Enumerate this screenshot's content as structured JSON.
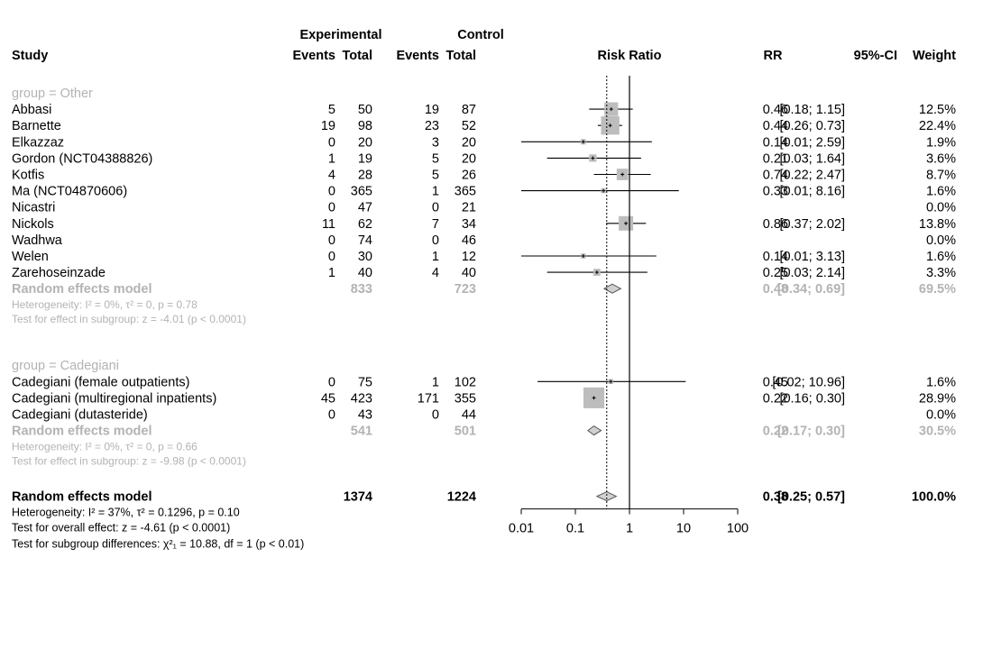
{
  "header": {
    "study": "Study",
    "experimental": "Experimental",
    "control": "Control",
    "events": "Events",
    "total": "Total",
    "risk_ratio": "Risk Ratio",
    "rr": "RR",
    "ci": "95%-CI",
    "weight": "Weight"
  },
  "chart_data": {
    "type": "forest",
    "xscale": "log",
    "xlim": [
      0.01,
      100
    ],
    "xticks": [
      "0.01",
      "0.1",
      "1",
      "10",
      "100"
    ],
    "reference_line": 1,
    "overall_line": 0.38,
    "groups": [
      {
        "label": "group = Other",
        "studies": [
          {
            "name": "Abbasi",
            "e_events": "5",
            "e_total": "50",
            "c_events": "19",
            "c_total": "87",
            "rr": "0.46",
            "ci": "[0.18; 1.15]",
            "weight": "12.5%",
            "rr_val": 0.46,
            "lo": 0.18,
            "hi": 1.15,
            "w": 12.5
          },
          {
            "name": "Barnette",
            "e_events": "19",
            "e_total": "98",
            "c_events": "23",
            "c_total": "52",
            "rr": "0.44",
            "ci": "[0.26; 0.73]",
            "weight": "22.4%",
            "rr_val": 0.44,
            "lo": 0.26,
            "hi": 0.73,
            "w": 22.4
          },
          {
            "name": "Elkazzaz",
            "e_events": "0",
            "e_total": "20",
            "c_events": "3",
            "c_total": "20",
            "rr": "0.14",
            "ci": "[0.01; 2.59]",
            "weight": "1.9%",
            "rr_val": 0.14,
            "lo": 0.01,
            "hi": 2.59,
            "w": 1.9
          },
          {
            "name": "Gordon (NCT04388826)",
            "e_events": "1",
            "e_total": "19",
            "c_events": "5",
            "c_total": "20",
            "rr": "0.21",
            "ci": "[0.03; 1.64]",
            "weight": "3.6%",
            "rr_val": 0.21,
            "lo": 0.03,
            "hi": 1.64,
            "w": 3.6
          },
          {
            "name": "Kotfis",
            "e_events": "4",
            "e_total": "28",
            "c_events": "5",
            "c_total": "26",
            "rr": "0.74",
            "ci": "[0.22; 2.47]",
            "weight": "8.7%",
            "rr_val": 0.74,
            "lo": 0.22,
            "hi": 2.47,
            "w": 8.7
          },
          {
            "name": "Ma (NCT04870606)",
            "e_events": "0",
            "e_total": "365",
            "c_events": "1",
            "c_total": "365",
            "rr": "0.33",
            "ci": "[0.01; 8.16]",
            "weight": "1.6%",
            "rr_val": 0.33,
            "lo": 0.01,
            "hi": 8.16,
            "w": 1.6
          },
          {
            "name": "Nicastri",
            "e_events": "0",
            "e_total": "47",
            "c_events": "0",
            "c_total": "21",
            "rr": "",
            "ci": "",
            "weight": "0.0%",
            "rr_val": null,
            "lo": null,
            "hi": null,
            "w": 0
          },
          {
            "name": "Nickols",
            "e_events": "11",
            "e_total": "62",
            "c_events": "7",
            "c_total": "34",
            "rr": "0.86",
            "ci": "[0.37; 2.02]",
            "weight": "13.8%",
            "rr_val": 0.86,
            "lo": 0.37,
            "hi": 2.02,
            "w": 13.8
          },
          {
            "name": "Wadhwa",
            "e_events": "0",
            "e_total": "74",
            "c_events": "0",
            "c_total": "46",
            "rr": "",
            "ci": "",
            "weight": "0.0%",
            "rr_val": null,
            "lo": null,
            "hi": null,
            "w": 0
          },
          {
            "name": "Welen",
            "e_events": "0",
            "e_total": "30",
            "c_events": "1",
            "c_total": "12",
            "rr": "0.14",
            "ci": "[0.01; 3.13]",
            "weight": "1.6%",
            "rr_val": 0.14,
            "lo": 0.01,
            "hi": 3.13,
            "w": 1.6
          },
          {
            "name": "Zarehoseinzade",
            "e_events": "1",
            "e_total": "40",
            "c_events": "4",
            "c_total": "40",
            "rr": "0.25",
            "ci": "[0.03; 2.14]",
            "weight": "3.3%",
            "rr_val": 0.25,
            "lo": 0.03,
            "hi": 2.14,
            "w": 3.3
          }
        ],
        "summary": {
          "label": "Random effects model",
          "e_total": "833",
          "c_total": "723",
          "rr": "0.48",
          "ci": "[0.34; 0.69]",
          "weight": "69.5%",
          "rr_val": 0.48,
          "lo": 0.34,
          "hi": 0.69
        },
        "heterogeneity": "Heterogeneity: I² = 0%, τ² = 0, p = 0.78",
        "test": "Test for effect in subgroup: z = -4.01 (p < 0.0001)"
      },
      {
        "label": "group = Cadegiani",
        "studies": [
          {
            "name": "Cadegiani (female outpatients)",
            "e_events": "0",
            "e_total": "75",
            "c_events": "1",
            "c_total": "102",
            "rr": "0.45",
            "ci": "[0.02; 10.96]",
            "weight": "1.6%",
            "rr_val": 0.45,
            "lo": 0.02,
            "hi": 10.96,
            "w": 1.6
          },
          {
            "name": "Cadegiani (multiregional inpatients)",
            "e_events": "45",
            "e_total": "423",
            "c_events": "171",
            "c_total": "355",
            "rr": "0.22",
            "ci": "[0.16; 0.30]",
            "weight": "28.9%",
            "rr_val": 0.22,
            "lo": 0.16,
            "hi": 0.3,
            "w": 28.9
          },
          {
            "name": "Cadegiani (dutasteride)",
            "e_events": "0",
            "e_total": "43",
            "c_events": "0",
            "c_total": "44",
            "rr": "",
            "ci": "",
            "weight": "0.0%",
            "rr_val": null,
            "lo": null,
            "hi": null,
            "w": 0
          }
        ],
        "summary": {
          "label": "Random effects model",
          "e_total": "541",
          "c_total": "501",
          "rr": "0.22",
          "ci": "[0.17; 0.30]",
          "weight": "30.5%",
          "rr_val": 0.22,
          "lo": 0.17,
          "hi": 0.3
        },
        "heterogeneity": "Heterogeneity: I² = 0%, τ² = 0, p = 0.66",
        "test": "Test for effect in subgroup: z = -9.98 (p < 0.0001)"
      }
    ],
    "overall": {
      "label": "Random effects model",
      "e_total": "1374",
      "c_total": "1224",
      "rr": "0.38",
      "ci": "[0.25; 0.57]",
      "weight": "100.0%",
      "rr_val": 0.38,
      "lo": 0.25,
      "hi": 0.57,
      "heterogeneity": "Heterogeneity: I² = 37%, τ² = 0.1296, p = 0.10",
      "test_overall": "Test for overall effect: z = -4.61 (p < 0.0001)",
      "test_subgroup": "Test for subgroup differences: χ²₁ = 10.88, df = 1 (p < 0.01)"
    }
  }
}
